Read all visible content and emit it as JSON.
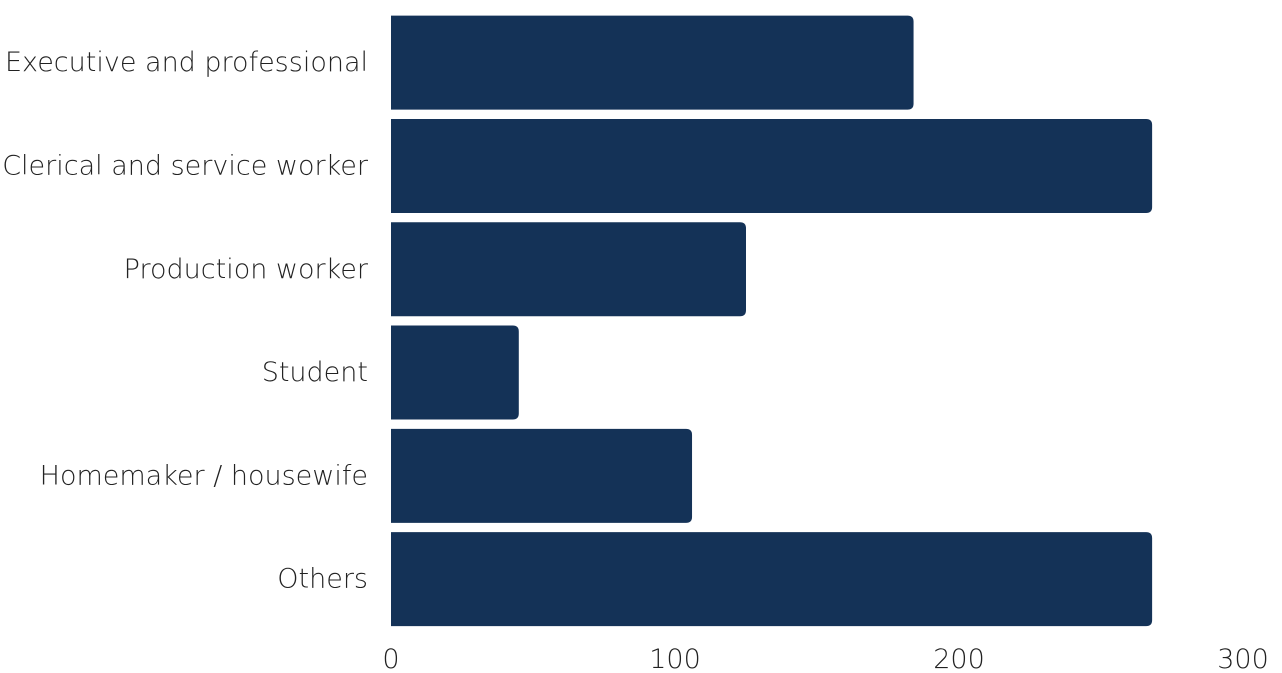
{
  "chart_data": {
    "type": "bar",
    "orientation": "horizontal",
    "categories": [
      "Executive and professional",
      "Clerical and service worker",
      "Production worker",
      "Student",
      "Homemaker / housewife",
      "Others"
    ],
    "values": [
      184,
      268,
      125,
      45,
      106,
      268
    ],
    "xlim": [
      0,
      300
    ],
    "xticks": [
      "0",
      "100",
      "200",
      "300"
    ],
    "title": "",
    "xlabel": "",
    "ylabel": "",
    "grid": false,
    "legend": "none",
    "colors": {
      "bar": "#143257",
      "text": "#222222",
      "background": "#ffffff"
    }
  }
}
